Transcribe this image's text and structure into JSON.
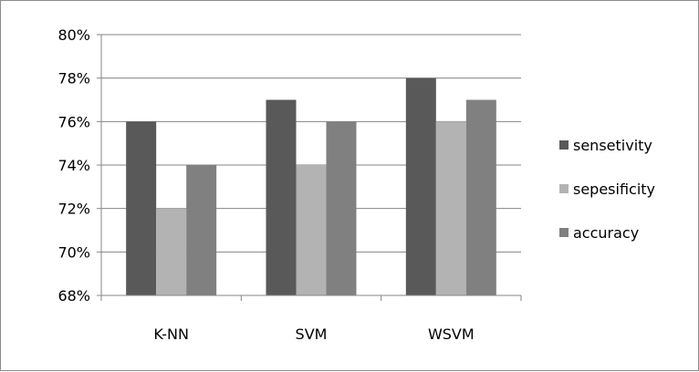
{
  "chart_data": {
    "type": "bar",
    "title": "",
    "xlabel": "",
    "ylabel": "",
    "categories": [
      "K-NN",
      "SVM",
      "WSVM"
    ],
    "series": [
      {
        "name": "sensetivity",
        "values": [
          76,
          77,
          78
        ],
        "color": "#595959"
      },
      {
        "name": "sepesificity",
        "values": [
          72,
          74,
          76
        ],
        "color": "#b3b3b3"
      },
      {
        "name": "accuracy",
        "values": [
          74,
          76,
          77
        ],
        "color": "#808080"
      }
    ],
    "ylim": [
      68,
      80
    ],
    "yticks": [
      "68%",
      "70%",
      "72%",
      "74%",
      "76%",
      "78%",
      "80%"
    ],
    "grid": true,
    "legend_position": "right"
  }
}
